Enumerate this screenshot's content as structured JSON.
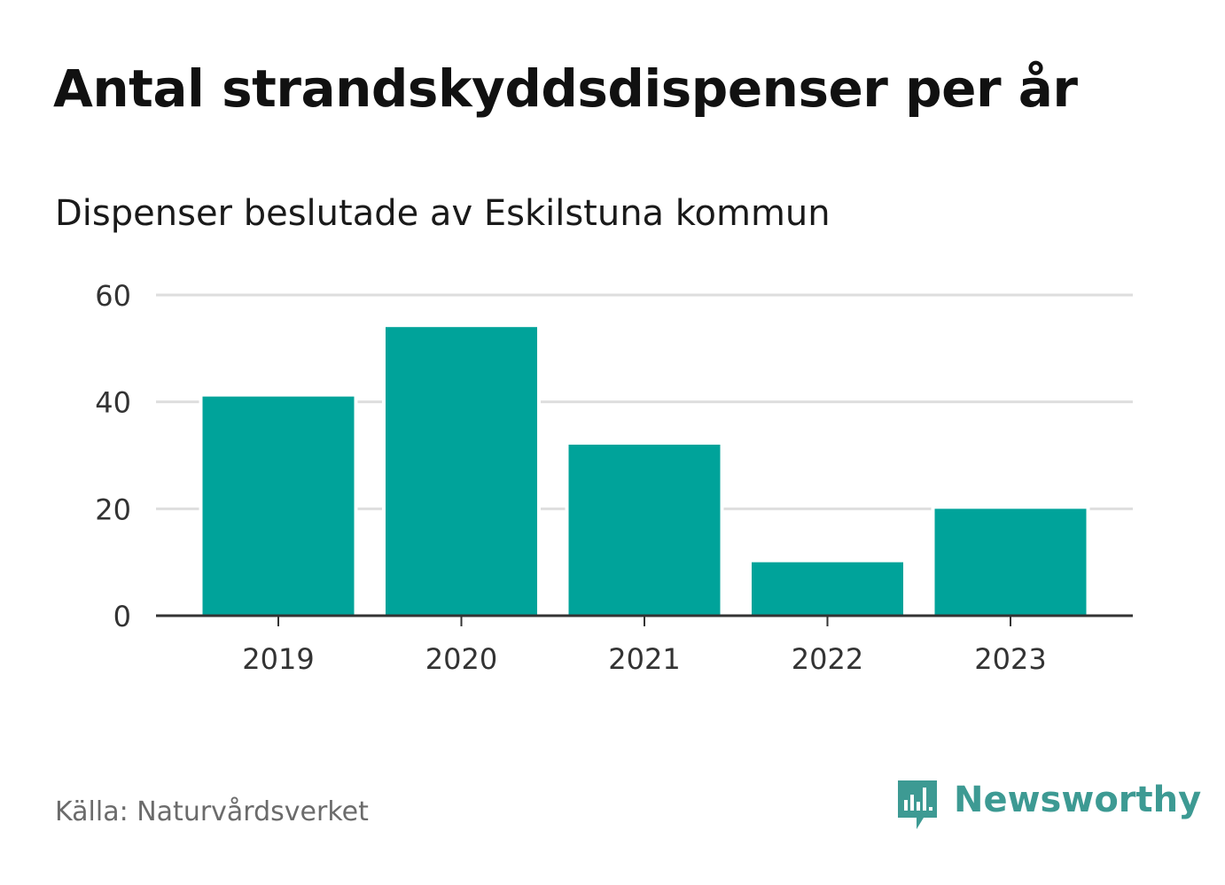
{
  "title": "Antal strandskyddsdispenser per år",
  "subtitle": "Dispenser beslutade av Eskilstuna kommun",
  "source": "Källa: Naturvårdsverket",
  "brand": {
    "name": "Newsworthy",
    "icon": "newsworthy-logo-icon"
  },
  "colors": {
    "bar": "#00a39a",
    "grid": "#dedede",
    "axis": "#333333",
    "tick_text": "#333333",
    "brand": "#3d9a93"
  },
  "chart_data": {
    "type": "bar",
    "title": "Antal strandskyddsdispenser per år",
    "subtitle": "Dispenser beslutade av Eskilstuna kommun",
    "categories": [
      "2019",
      "2020",
      "2021",
      "2022",
      "2023"
    ],
    "values": [
      41,
      54,
      32,
      10,
      20
    ],
    "xlabel": "",
    "ylabel": "",
    "ylim": [
      0,
      60
    ],
    "yticks": [
      0,
      20,
      40,
      60
    ],
    "grid": true,
    "legend": "none"
  }
}
